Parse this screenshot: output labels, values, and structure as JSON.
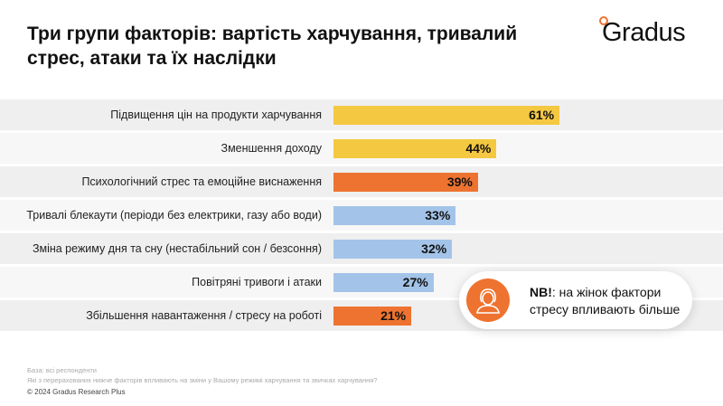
{
  "header": {
    "title": "Три групи факторів: вартість харчування, тривалий стрес, атаки та їх наслідки",
    "logo": "Gradus"
  },
  "colors": {
    "yellow": "#f5c842",
    "orange": "#ee7330",
    "blue": "#a3c4e8"
  },
  "chart_data": {
    "type": "bar",
    "orientation": "horizontal",
    "xlim": [
      0,
      100
    ],
    "grid": false,
    "categories": [
      "Підвищення цін на продукти харчування",
      "Зменшення доходу",
      "Психологічний стрес та емоційне виснаження",
      "Тривалі блекаути (періоди без електрики, газу або води)",
      "Зміна режиму дня та сну (нестабільний сон / безсоння)",
      "Повітряні тривоги і атаки",
      "Збільшення навантаження / стресу на роботі"
    ],
    "values": [
      61,
      44,
      39,
      33,
      32,
      27,
      21
    ],
    "labels": [
      "61%",
      "44%",
      "39%",
      "33%",
      "32%",
      "27%",
      "21%"
    ],
    "bar_colors": [
      "yellow",
      "yellow",
      "orange",
      "blue",
      "blue",
      "blue",
      "orange"
    ]
  },
  "callout": {
    "icon": "woman-icon",
    "bold": "NB!",
    "text": ": на жінок фактори стресу впливають більше"
  },
  "footer": {
    "base": "База: всі респонденти",
    "question": "Які з перерахованих нижче факторів впливають на зміни у Вашому режимі харчування та звичках харчування?",
    "copyright": "© 2024 Gradus Research Plus"
  }
}
